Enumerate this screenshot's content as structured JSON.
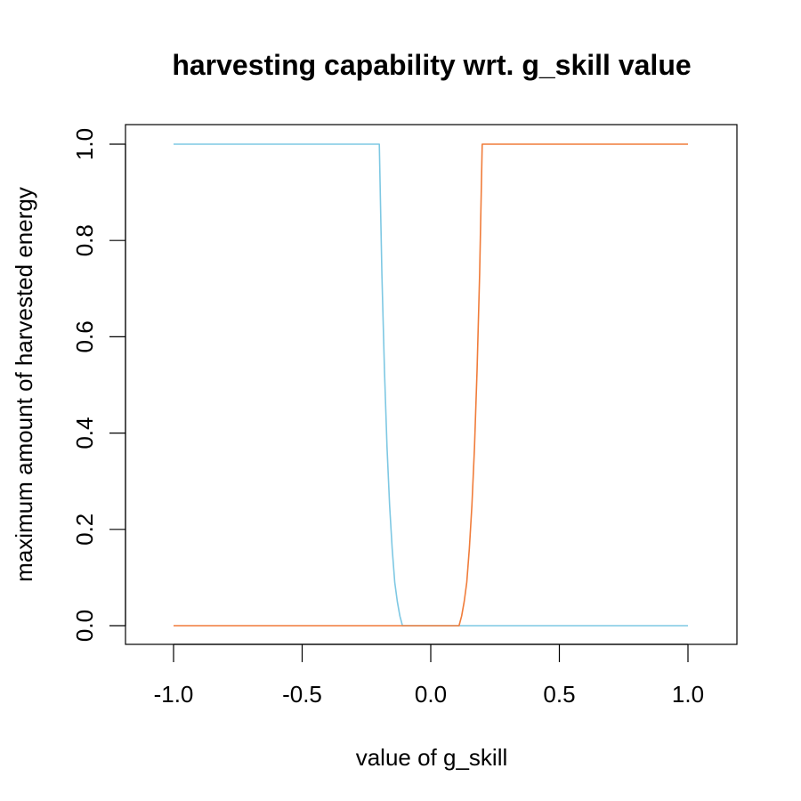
{
  "chart_data": {
    "type": "line",
    "title": "harvesting capability wrt. g_skill value",
    "xlabel": "value of g_skill",
    "ylabel": "maximum amount of harvested energy",
    "xlim": [
      -1.0,
      1.0
    ],
    "ylim": [
      0.0,
      1.0
    ],
    "x_ticks": [
      "-1.0",
      "-0.5",
      "0.0",
      "0.5",
      "1.0"
    ],
    "y_ticks": [
      "0.0",
      "0.2",
      "0.4",
      "0.6",
      "0.8",
      "1.0"
    ],
    "grid": false,
    "legend": "none",
    "series": [
      {
        "color": "#7ec8e3",
        "x": [
          -1.0,
          -0.2,
          -0.19,
          -0.18,
          -0.17,
          -0.16,
          -0.15,
          -0.14,
          -0.13,
          -0.12,
          -0.11,
          0.0,
          0.1,
          1.0
        ],
        "y": [
          1.0,
          1.0,
          0.73,
          0.53,
          0.37,
          0.25,
          0.16,
          0.09,
          0.05,
          0.02,
          0.0,
          0.0,
          0.0,
          0.0
        ]
      },
      {
        "color": "#f07c3a",
        "x": [
          -1.0,
          0.0,
          0.11,
          0.12,
          0.13,
          0.14,
          0.15,
          0.16,
          0.17,
          0.18,
          0.19,
          0.2,
          1.0
        ],
        "y": [
          0.0,
          0.0,
          0.0,
          0.02,
          0.05,
          0.09,
          0.16,
          0.25,
          0.37,
          0.53,
          0.73,
          1.0,
          1.0
        ]
      }
    ]
  }
}
